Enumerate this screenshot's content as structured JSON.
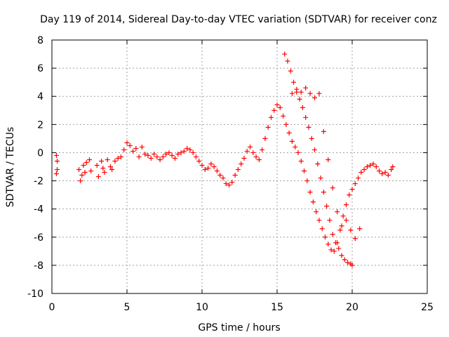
{
  "chart_data": {
    "type": "scatter",
    "title": "Day 119 of 2014, Sidereal Day-to-day VTEC variation (SDTVAR) for receiver conz",
    "xlabel": "GPS time / hours",
    "ylabel": "SDTVAR / TECUs",
    "xlim": [
      0,
      25
    ],
    "ylim": [
      -10,
      8
    ],
    "xticks": [
      0,
      5,
      10,
      15,
      20,
      25
    ],
    "yticks": [
      -10,
      -8,
      -6,
      -4,
      -2,
      0,
      2,
      4,
      6,
      8
    ],
    "xtick_labels": [
      "0",
      "5",
      "10",
      "15",
      "20",
      "25"
    ],
    "ytick_labels": [
      "-10",
      "-8",
      "-6",
      "-4",
      "-2",
      "0",
      "2",
      "4",
      "6",
      "8"
    ],
    "grid": true,
    "marker": "+",
    "color": "#ff0000",
    "series": [
      {
        "name": "SDTVAR",
        "x": [
          0.3,
          0.3,
          0.35,
          0.35,
          1.8,
          1.9,
          2.0,
          2.1,
          2.2,
          2.3,
          2.5,
          2.6,
          3.0,
          3.1,
          3.3,
          3.4,
          3.5,
          3.7,
          3.9,
          4.0,
          4.2,
          4.4,
          4.6,
          4.8,
          5.0,
          5.2,
          5.4,
          5.6,
          5.8,
          6.0,
          6.2,
          6.4,
          6.6,
          6.8,
          7.0,
          7.2,
          7.4,
          7.6,
          7.8,
          8.0,
          8.2,
          8.4,
          8.6,
          8.8,
          9.0,
          9.2,
          9.4,
          9.6,
          9.8,
          10.0,
          10.2,
          10.4,
          10.6,
          10.8,
          11.0,
          11.2,
          11.4,
          11.6,
          11.8,
          12.0,
          12.2,
          12.4,
          12.6,
          12.8,
          13.0,
          13.2,
          13.4,
          13.6,
          13.8,
          14.0,
          14.2,
          14.4,
          14.6,
          14.8,
          15.0,
          15.2,
          15.4,
          15.6,
          15.8,
          16.0,
          16.2,
          16.4,
          16.6,
          16.8,
          17.0,
          17.2,
          17.4,
          17.6,
          17.8,
          18.0,
          18.2,
          18.4,
          18.6,
          18.8,
          19.0,
          19.2,
          19.4,
          19.6,
          19.8,
          20.0,
          20.2,
          20.4,
          20.6,
          20.8,
          21.0,
          21.2,
          21.4,
          21.6,
          21.8,
          22.0,
          22.2,
          22.4,
          22.6,
          22.7,
          15.5,
          15.7,
          15.9,
          16.1,
          16.3,
          16.5,
          16.7,
          16.9,
          17.1,
          17.3,
          17.5,
          17.7,
          17.9,
          18.1,
          18.3,
          18.5,
          18.7,
          18.9,
          19.1,
          19.3,
          19.5,
          19.7,
          19.9,
          20.0,
          16.0,
          16.3,
          16.6,
          16.9,
          17.2,
          17.5,
          17.8,
          18.1,
          18.4,
          18.7,
          19.0,
          19.3,
          19.6,
          19.9,
          20.2,
          20.5
        ],
        "y": [
          -0.2,
          -1.5,
          -0.6,
          -1.2,
          -1.2,
          -2.0,
          -1.6,
          -0.9,
          -1.4,
          -0.7,
          -0.5,
          -1.3,
          -0.9,
          -1.7,
          -0.6,
          -1.1,
          -1.4,
          -0.5,
          -1.0,
          -1.2,
          -0.6,
          -0.4,
          -0.3,
          0.2,
          0.7,
          0.5,
          0.1,
          0.3,
          -0.3,
          0.4,
          -0.1,
          -0.2,
          -0.4,
          -0.1,
          -0.3,
          -0.5,
          -0.3,
          -0.1,
          0.0,
          -0.2,
          -0.4,
          -0.1,
          0.0,
          0.1,
          0.3,
          0.2,
          0.0,
          -0.3,
          -0.6,
          -0.9,
          -1.2,
          -1.1,
          -0.8,
          -1.0,
          -1.3,
          -1.6,
          -1.8,
          -2.2,
          -2.3,
          -2.1,
          -1.6,
          -1.2,
          -0.8,
          -0.4,
          0.1,
          0.4,
          0.0,
          -0.3,
          -0.5,
          0.2,
          1.0,
          1.8,
          2.5,
          3.0,
          3.4,
          3.2,
          2.6,
          2.0,
          1.4,
          0.8,
          0.4,
          0.0,
          -0.6,
          -1.3,
          -2.0,
          -2.8,
          -3.5,
          -4.2,
          -4.8,
          -5.4,
          -6.0,
          -6.5,
          -6.9,
          -7.0,
          -6.4,
          -5.5,
          -4.5,
          -3.7,
          -3.0,
          -2.6,
          -2.2,
          -1.8,
          -1.4,
          -1.2,
          -1.0,
          -0.9,
          -0.8,
          -1.0,
          -1.3,
          -1.5,
          -1.4,
          -1.6,
          -1.2,
          -1.0,
          7.0,
          6.5,
          5.8,
          5.0,
          4.3,
          3.8,
          3.2,
          2.5,
          1.8,
          1.0,
          0.2,
          -0.8,
          -1.8,
          -2.8,
          -3.8,
          -4.8,
          -5.8,
          -6.4,
          -6.8,
          -7.3,
          -7.6,
          -7.8,
          -7.9,
          -8.0,
          4.2,
          4.5,
          4.3,
          4.6,
          4.2,
          3.9,
          4.2,
          1.5,
          -0.5,
          -2.5,
          -4.2,
          -5.2,
          -4.8,
          -5.5,
          -6.1,
          -5.4
        ]
      }
    ]
  }
}
